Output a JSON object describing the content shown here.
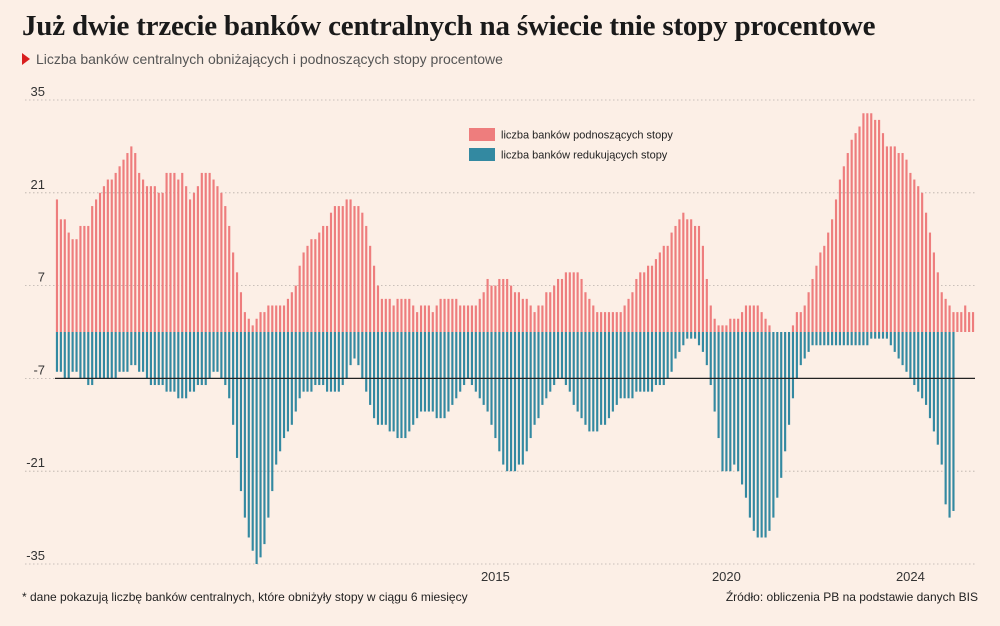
{
  "header": {
    "title": "Już dwie trzecie banków centralnych na świecie tnie stopy procentowe",
    "subtitle": "Liczba banków centralnych obniżających i podnoszących stopy procentowe"
  },
  "footer": {
    "footnote": "* dane pokazują liczbę banków centralnych, które obniżyły stopy w ciągu 6 miesięcy",
    "source": "Źródło: obliczenia PB na podstawie danych BIS"
  },
  "colors": {
    "background": "#fcefe6",
    "hikes": "#ee7d7d",
    "cuts": "#3389a1",
    "reference_line": "#222222",
    "grid": "#b8b0aa"
  },
  "chart_data": {
    "type": "bar",
    "title": "Liczba banków centralnych obniżających i podnoszących stopy procentowe",
    "xlabel": "",
    "ylabel": "",
    "ylim": [
      -35,
      35
    ],
    "yticks": [
      35,
      21,
      7,
      -7,
      -21,
      -35
    ],
    "grid": true,
    "x_tick_labels": [
      {
        "label": "2015",
        "index": 112
      },
      {
        "label": "2020",
        "index": 171
      },
      {
        "label": "2024",
        "index": 218
      }
    ],
    "reference_line": {
      "value": -7
    },
    "legend_position": "top-center",
    "series": [
      {
        "name": "liczba banków podnoszących stopy",
        "values": [
          20,
          17,
          17,
          15,
          14,
          14,
          16,
          16,
          16,
          19,
          20,
          21,
          22,
          23,
          23,
          24,
          25,
          26,
          27,
          28,
          27,
          24,
          23,
          22,
          22,
          22,
          21,
          21,
          24,
          24,
          24,
          23,
          24,
          22,
          20,
          21,
          22,
          24,
          24,
          24,
          23,
          22,
          21,
          19,
          16,
          12,
          9,
          6,
          3,
          2,
          1,
          2,
          3,
          3,
          4,
          4,
          4,
          4,
          4,
          5,
          6,
          7,
          10,
          12,
          13,
          14,
          14,
          15,
          16,
          16,
          18,
          19,
          19,
          19,
          20,
          20,
          19,
          19,
          18,
          16,
          13,
          10,
          7,
          5,
          5,
          5,
          4,
          5,
          5,
          5,
          5,
          4,
          3,
          4,
          4,
          4,
          3,
          4,
          5,
          5,
          5,
          5,
          5,
          4,
          4,
          4,
          4,
          4,
          5,
          6,
          8,
          7,
          7,
          8,
          8,
          8,
          7,
          6,
          6,
          5,
          5,
          4,
          3,
          4,
          4,
          6,
          6,
          7,
          8,
          8,
          9,
          9,
          9,
          9,
          8,
          6,
          5,
          4,
          3,
          3,
          3,
          3,
          3,
          3,
          3,
          4,
          5,
          6,
          8,
          9,
          9,
          10,
          10,
          11,
          12,
          13,
          13,
          15,
          16,
          17,
          18,
          17,
          17,
          16,
          16,
          13,
          8,
          4,
          2,
          1,
          1,
          1,
          2,
          2,
          2,
          3,
          4,
          4,
          4,
          4,
          3,
          2,
          1,
          0,
          0,
          0,
          0,
          0,
          1,
          3,
          3,
          4,
          6,
          8,
          10,
          12,
          13,
          15,
          17,
          20,
          23,
          25,
          27,
          29,
          30,
          31,
          33,
          33,
          33,
          32,
          32,
          30,
          28,
          28,
          28,
          27,
          27,
          26,
          24,
          23,
          22,
          21,
          18,
          15,
          12,
          9,
          6,
          5,
          4,
          3,
          3,
          3,
          4,
          3,
          3
        ]
      },
      {
        "name": "liczba banków redukujących stopy",
        "values": [
          -6,
          -6,
          -7,
          -7,
          -6,
          -6,
          -7,
          -7,
          -8,
          -8,
          -7,
          -7,
          -7,
          -7,
          -7,
          -7,
          -6,
          -6,
          -6,
          -5,
          -5,
          -6,
          -6,
          -7,
          -8,
          -8,
          -8,
          -8,
          -9,
          -9,
          -9,
          -10,
          -10,
          -10,
          -9,
          -9,
          -8,
          -8,
          -8,
          -7,
          -6,
          -6,
          -7,
          -8,
          -10,
          -14,
          -19,
          -24,
          -28,
          -31,
          -33,
          -35,
          -34,
          -32,
          -28,
          -24,
          -20,
          -18,
          -16,
          -15,
          -14,
          -12,
          -10,
          -9,
          -9,
          -9,
          -8,
          -8,
          -8,
          -9,
          -9,
          -9,
          -9,
          -8,
          -7,
          -5,
          -4,
          -5,
          -7,
          -9,
          -11,
          -13,
          -14,
          -14,
          -14,
          -15,
          -15,
          -16,
          -16,
          -16,
          -15,
          -14,
          -13,
          -12,
          -12,
          -12,
          -12,
          -13,
          -13,
          -13,
          -12,
          -11,
          -10,
          -9,
          -8,
          -7,
          -8,
          -9,
          -10,
          -11,
          -12,
          -14,
          -16,
          -18,
          -20,
          -21,
          -21,
          -21,
          -20,
          -20,
          -18,
          -16,
          -14,
          -13,
          -11,
          -10,
          -9,
          -8,
          -7,
          -7,
          -8,
          -9,
          -11,
          -12,
          -13,
          -14,
          -15,
          -15,
          -15,
          -14,
          -14,
          -13,
          -12,
          -11,
          -10,
          -10,
          -10,
          -10,
          -9,
          -9,
          -9,
          -9,
          -9,
          -8,
          -8,
          -8,
          -7,
          -6,
          -4,
          -3,
          -2,
          -1,
          -1,
          -1,
          -2,
          -3,
          -5,
          -8,
          -12,
          -16,
          -21,
          -21,
          -21,
          -20,
          -21,
          -23,
          -25,
          -28,
          -30,
          -31,
          -31,
          -31,
          -30,
          -28,
          -25,
          -22,
          -18,
          -14,
          -10,
          -7,
          -5,
          -4,
          -3,
          -2,
          -2,
          -2,
          -2,
          -2,
          -2,
          -2,
          -2,
          -2,
          -2,
          -2,
          -2,
          -2,
          -2,
          -2,
          -1,
          -1,
          -1,
          -1,
          -1,
          -2,
          -3,
          -4,
          -5,
          -6,
          -7,
          -8,
          -9,
          -10,
          -11,
          -13,
          -15,
          -17,
          -20,
          -26,
          -28,
          -27
        ]
      }
    ]
  }
}
